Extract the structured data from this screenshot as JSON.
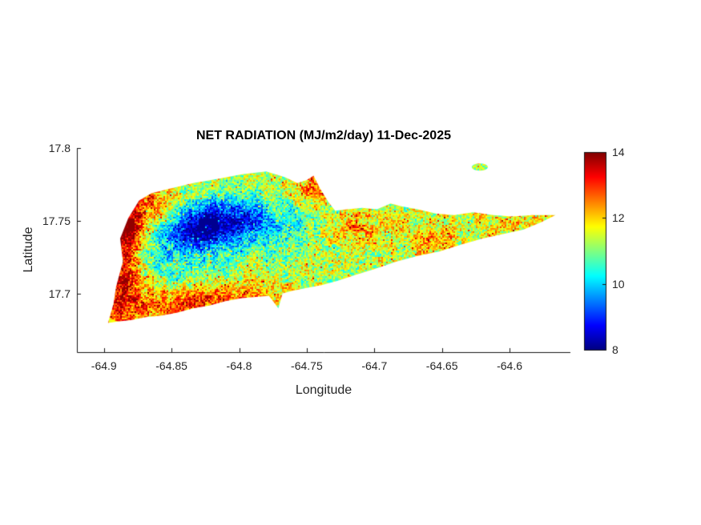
{
  "figure": {
    "background": "#ffffff"
  },
  "chart_data": {
    "type": "heatmap",
    "title": "NET RADIATION (MJ/m2/day) 11-Dec-2025",
    "xlabel": "Longitude",
    "ylabel": "Latitude",
    "xlim": [
      -64.92,
      -64.555
    ],
    "ylim": [
      17.66,
      17.8
    ],
    "xticks": [
      -64.9,
      -64.85,
      -64.8,
      -64.75,
      -64.7,
      -64.65,
      -64.6
    ],
    "xtick_labels": [
      "-64.9",
      "-64.85",
      "-64.8",
      "-64.75",
      "-64.7",
      "-64.65",
      "-64.6"
    ],
    "yticks": [
      17.7,
      17.75,
      17.8
    ],
    "ytick_labels": [
      "17.7",
      "17.75",
      "17.8"
    ],
    "colormap": "jet",
    "clim": [
      8,
      14
    ],
    "colorbar_ticks": [
      8,
      10,
      12,
      14
    ],
    "colorbar_tick_labels": [
      "8",
      "10",
      "12",
      "14"
    ],
    "grid": false,
    "region": "St. Croix island net-radiation raster",
    "island_outline": [
      [
        -64.897,
        17.68
      ],
      [
        -64.893,
        17.693
      ],
      [
        -64.891,
        17.705
      ],
      [
        -64.886,
        17.722
      ],
      [
        -64.888,
        17.738
      ],
      [
        -64.882,
        17.752
      ],
      [
        -64.874,
        17.764
      ],
      [
        -64.865,
        17.769
      ],
      [
        -64.852,
        17.772
      ],
      [
        -64.834,
        17.776
      ],
      [
        -64.815,
        17.779
      ],
      [
        -64.798,
        17.782
      ],
      [
        -64.78,
        17.784
      ],
      [
        -64.766,
        17.78
      ],
      [
        -64.757,
        17.776
      ],
      [
        -64.75,
        17.778
      ],
      [
        -64.745,
        17.781
      ],
      [
        -64.74,
        17.772
      ],
      [
        -64.734,
        17.763
      ],
      [
        -64.729,
        17.757
      ],
      [
        -64.72,
        17.758
      ],
      [
        -64.709,
        17.759
      ],
      [
        -64.698,
        17.758
      ],
      [
        -64.688,
        17.762
      ],
      [
        -64.68,
        17.76
      ],
      [
        -64.668,
        17.758
      ],
      [
        -64.654,
        17.755
      ],
      [
        -64.641,
        17.754
      ],
      [
        -64.627,
        17.756
      ],
      [
        -64.612,
        17.754
      ],
      [
        -64.598,
        17.753
      ],
      [
        -64.583,
        17.754
      ],
      [
        -64.566,
        17.754
      ],
      [
        -64.577,
        17.749
      ],
      [
        -64.59,
        17.744
      ],
      [
        -64.605,
        17.741
      ],
      [
        -64.62,
        17.738
      ],
      [
        -64.635,
        17.734
      ],
      [
        -64.652,
        17.729
      ],
      [
        -64.668,
        17.726
      ],
      [
        -64.684,
        17.722
      ],
      [
        -64.7,
        17.717
      ],
      [
        -64.714,
        17.713
      ],
      [
        -64.727,
        17.709
      ],
      [
        -64.739,
        17.706
      ],
      [
        -64.75,
        17.704
      ],
      [
        -64.761,
        17.702
      ],
      [
        -64.773,
        17.699
      ],
      [
        -64.786,
        17.698
      ],
      [
        -64.798,
        17.697
      ],
      [
        -64.81,
        17.695
      ],
      [
        -64.822,
        17.692
      ],
      [
        -64.834,
        17.69
      ],
      [
        -64.846,
        17.687
      ],
      [
        -64.858,
        17.685
      ],
      [
        -64.869,
        17.684
      ],
      [
        -64.88,
        17.682
      ],
      [
        -64.89,
        17.681
      ]
    ],
    "peninsula_outline": [
      [
        -64.779,
        17.7
      ],
      [
        -64.768,
        17.7
      ],
      [
        -64.771,
        17.69
      ]
    ],
    "islet": {
      "lon": -64.622,
      "lat": 17.787,
      "rlon": 0.006,
      "rlat": 0.0025
    },
    "field": {
      "base": 11.3,
      "noise_fine": 0.8,
      "noise_coarse": 0.5,
      "hot_speckle": 1.1,
      "blobs": [
        {
          "lon": -64.828,
          "lat": 17.745,
          "sx": 0.018,
          "sy": 0.01,
          "amp": -2.6
        },
        {
          "lon": -64.805,
          "lat": 17.752,
          "sx": 0.02,
          "sy": 0.01,
          "amp": -1.6
        },
        {
          "lon": -64.845,
          "lat": 17.728,
          "sx": 0.022,
          "sy": 0.012,
          "amp": -1.0
        },
        {
          "lon": -64.775,
          "lat": 17.746,
          "sx": 0.025,
          "sy": 0.012,
          "amp": -0.9
        },
        {
          "lon": -64.888,
          "lat": 17.72,
          "sx": 0.01,
          "sy": 0.035,
          "amp": 2.2
        },
        {
          "lon": -64.88,
          "lat": 17.747,
          "sx": 0.008,
          "sy": 0.012,
          "amp": 1.6
        },
        {
          "lon": -64.862,
          "lat": 17.762,
          "sx": 0.012,
          "sy": 0.008,
          "amp": 1.4
        },
        {
          "lon": -64.845,
          "lat": 17.692,
          "sx": 0.03,
          "sy": 0.008,
          "amp": 1.4
        },
        {
          "lon": -64.8,
          "lat": 17.699,
          "sx": 0.025,
          "sy": 0.006,
          "amp": 1.0
        },
        {
          "lon": -64.745,
          "lat": 17.774,
          "sx": 0.01,
          "sy": 0.008,
          "amp": 1.3
        },
        {
          "lon": -64.715,
          "lat": 17.745,
          "sx": 0.018,
          "sy": 0.01,
          "amp": 0.9
        },
        {
          "lon": -64.657,
          "lat": 17.737,
          "sx": 0.012,
          "sy": 0.008,
          "amp": 1.1
        },
        {
          "lon": -64.6,
          "lat": 17.75,
          "sx": 0.02,
          "sy": 0.008,
          "amp": 0.6
        }
      ]
    }
  }
}
